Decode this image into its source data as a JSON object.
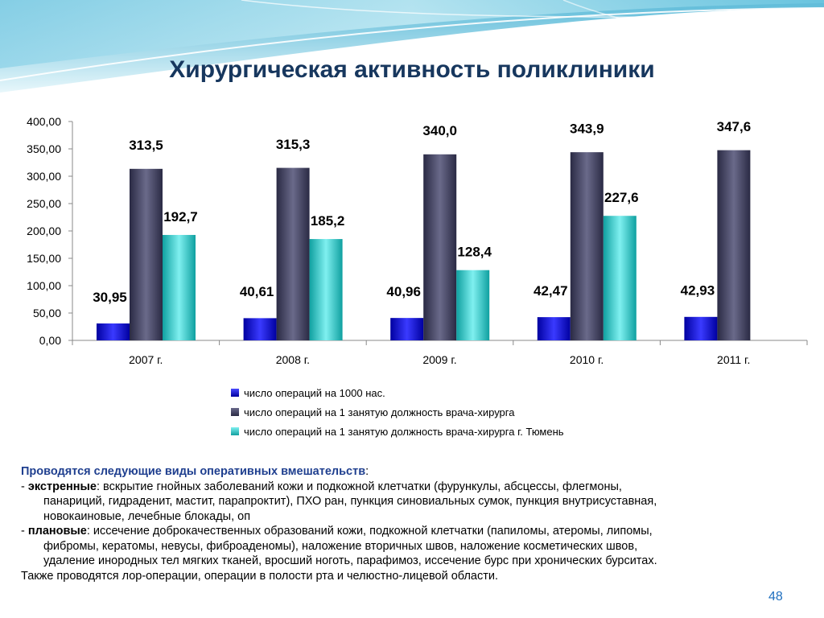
{
  "slide": {
    "title": "Хирургическая активность поликлиники",
    "page_number": "48"
  },
  "colors": {
    "series1": "#1a1adc",
    "series2": "#3c3c5c",
    "series3": "#20c8c8",
    "title": "#17375e",
    "accent": "#1f3f8f"
  },
  "chart_data": {
    "type": "bar",
    "categories": [
      "2007 г.",
      "2008 г.",
      "2009 г.",
      "2010 г.",
      "2011 г."
    ],
    "series": [
      {
        "name": "число операций на 1000 нас.",
        "values": [
          30.95,
          40.61,
          40.96,
          42.47,
          42.93
        ],
        "labels": [
          "30,95",
          "40,61",
          "40,96",
          "42,47",
          "42,93"
        ]
      },
      {
        "name": "число операций на 1 занятую должность врача-хирурга",
        "values": [
          313.5,
          315.3,
          340.0,
          343.9,
          347.6
        ],
        "labels": [
          "313,5",
          "315,3",
          "340,0",
          "343,9",
          "347,6"
        ]
      },
      {
        "name": "число операций на 1 занятую должность врача-хирурга г. Тюмень",
        "values": [
          192.7,
          185.2,
          128.4,
          227.6,
          null
        ],
        "labels": [
          "192,7",
          "185,2",
          "128,4",
          "227,6",
          null
        ]
      }
    ],
    "ylim": [
      0,
      400
    ],
    "yticks": [
      "0,00",
      "50,00",
      "100,00",
      "150,00",
      "200,00",
      "250,00",
      "300,00",
      "350,00",
      "400,00"
    ],
    "legend_position": "bottom",
    "grid": false
  },
  "text": {
    "intro": "Проводятся следующие виды оперативных вмешательств",
    "intro_colon": ":",
    "dash": "- ",
    "emergency_label": "экстренные",
    "emergency_line1": ": вскрытие гнойных заболеваний кожи и подкожной клетчатки (фурункулы, абсцессы, флегмоны,",
    "emergency_line2": "панариций, гидраденит, мастит, парапроктит), ПХО ран, пункция синовиальных сумок, пункция внутрисуставная,",
    "emergency_line3": "новокаиновые, лечебные блокады, оп",
    "planned_label": "плановые",
    "planned_line1": ": иссечение доброкачественных образований кожи, подкожной клетчатки (папиломы, атеромы, липомы,",
    "planned_line2": "фибромы, кератомы, невусы, фиброаденомы), наложение вторичных швов, наложение косметических швов,",
    "planned_line3": "удаление инородных тел мягких тканей, вросший ноготь, парафимоз, иссечение бурс при хронических бурситах.",
    "also": "Также проводятся лор-операции, операции в полости рта и челюстно-лицевой области."
  }
}
